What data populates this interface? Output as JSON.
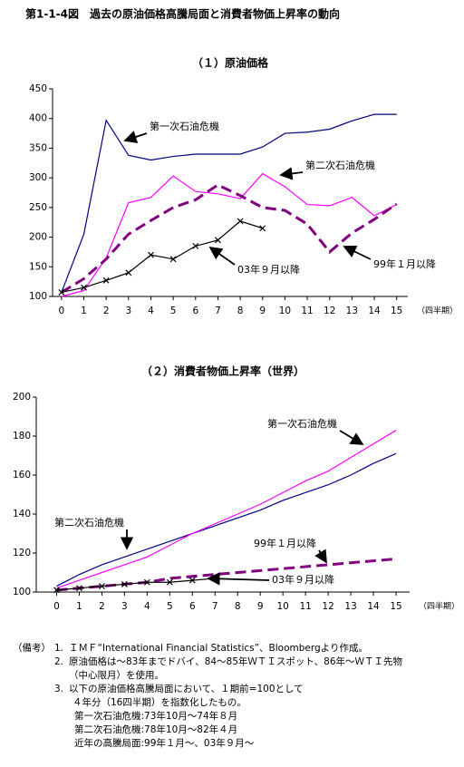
{
  "title": "第1-1-4図　過去の原油価格高騰局面と消費者物価上昇率の動向",
  "chart_data": [
    {
      "type": "line",
      "title": "（１）原油価格",
      "x_unit": "（四半期）",
      "x": [
        0,
        1,
        2,
        3,
        4,
        5,
        6,
        7,
        8,
        9,
        10,
        11,
        12,
        13,
        14,
        15
      ],
      "xlim": [
        -0.4,
        15.5
      ],
      "xticks": [
        0,
        1,
        2,
        3,
        4,
        5,
        6,
        7,
        8,
        9,
        10,
        11,
        12,
        13,
        14,
        15
      ],
      "ylim": [
        100,
        450
      ],
      "yticks": [
        100,
        150,
        200,
        250,
        300,
        350,
        400,
        450
      ],
      "series": [
        {
          "name": "第一次石油危機",
          "color": "#000080",
          "style": "solid",
          "values": [
            107,
            205,
            397,
            338,
            330,
            336,
            340,
            340,
            340,
            352,
            375,
            377,
            382,
            396,
            407,
            407
          ]
        },
        {
          "name": "第二次石油危機",
          "color": "#ff00ff",
          "style": "solid",
          "values": [
            100,
            110,
            165,
            258,
            267,
            303,
            277,
            273,
            265,
            307,
            285,
            255,
            253,
            267,
            236,
            255
          ]
        },
        {
          "name": "99年１月以降",
          "color": "#800080",
          "style": "dashed",
          "values": [
            107,
            130,
            163,
            205,
            228,
            250,
            263,
            288,
            270,
            250,
            245,
            222,
            175,
            207,
            230,
            256
          ]
        },
        {
          "name": "03年９月以降",
          "color": "#000000",
          "style": "solid",
          "marker": "x",
          "values": [
            107,
            115,
            127,
            140,
            170,
            163,
            185,
            195,
            227,
            215,
            null,
            null,
            null,
            null,
            null,
            null
          ]
        }
      ]
    },
    {
      "type": "line",
      "title": "（２）消費者物価上昇率（世界）",
      "x_unit": "（四半期）",
      "x": [
        0,
        1,
        2,
        3,
        4,
        5,
        6,
        7,
        8,
        9,
        10,
        11,
        12,
        13,
        14,
        15
      ],
      "xlim": [
        -0.9,
        15.6
      ],
      "xticks": [
        0,
        1,
        2,
        3,
        4,
        5,
        6,
        7,
        8,
        9,
        10,
        11,
        12,
        13,
        14,
        15
      ],
      "ylim": [
        100,
        200
      ],
      "yticks": [
        100,
        120,
        140,
        160,
        180,
        200
      ],
      "series": [
        {
          "name": "第一次石油危機",
          "color": "#000080",
          "style": "solid",
          "values": [
            103,
            109,
            114,
            118,
            122,
            126,
            130,
            134,
            138,
            142,
            147,
            151,
            155,
            160,
            166,
            171
          ]
        },
        {
          "name": "第二次石油危機",
          "color": "#ff00ff",
          "style": "solid",
          "values": [
            102,
            106,
            110,
            114,
            118,
            124,
            130,
            135,
            140,
            145,
            151,
            157,
            162,
            169,
            176,
            183
          ]
        },
        {
          "name": "99年１月以降",
          "color": "#800080",
          "style": "dashed",
          "values": [
            101,
            102,
            103,
            104,
            105,
            107,
            108,
            109,
            110,
            111,
            112,
            113,
            114,
            115,
            116,
            117
          ]
        },
        {
          "name": "03年９月以降",
          "color": "#000000",
          "style": "solid",
          "marker": "x",
          "values": [
            101,
            102,
            103,
            104,
            105,
            105,
            106,
            107,
            null,
            null,
            null,
            null,
            null,
            null,
            null,
            null
          ]
        }
      ]
    }
  ],
  "notes": {
    "label": "（備考）",
    "items": [
      {
        "num": "1.",
        "lines": [
          "ＩＭＦ“International Financial Statistics”、Bloombergより作成。"
        ]
      },
      {
        "num": "2.",
        "lines": [
          "原油価格は～83年までドバイ、84～85年ＷＴＩスポット、86年～ＷＴＩ先物",
          "（中心限月）を使用。"
        ]
      },
      {
        "num": "3.",
        "lines": [
          "以下の原油価格高騰局面において、１期前=100として",
          "４年分（16四半期）を指数化したもの。",
          "第一次石油危機:73年10月～74年８月",
          "第二次石油危機:78年10月～82年４月",
          "近年の高騰局面:99年１月～、03年９月～"
        ]
      }
    ]
  }
}
